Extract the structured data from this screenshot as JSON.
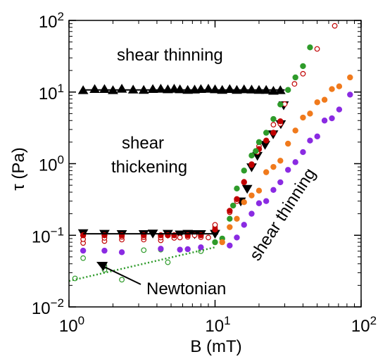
{
  "chart_data": {
    "type": "scatter",
    "xlabel": "B (mT)",
    "ylabel": "τ (Pa)",
    "xscale": "log",
    "yscale": "log",
    "xlim": [
      1,
      100
    ],
    "ylim": [
      0.01,
      100
    ],
    "x_ticks": [
      {
        "value": 1,
        "base": "10",
        "exp": "0"
      },
      {
        "value": 10,
        "base": "10",
        "exp": "1"
      },
      {
        "value": 100,
        "base": "10",
        "exp": "2"
      }
    ],
    "y_ticks": [
      {
        "value": 0.01,
        "base": "10",
        "exp": "−2"
      },
      {
        "value": 0.1,
        "base": "10",
        "exp": "−1"
      },
      {
        "value": 1,
        "base": "10",
        "exp": "0"
      },
      {
        "value": 10,
        "base": "10",
        "exp": "1"
      },
      {
        "value": 100,
        "base": "10",
        "exp": "2"
      }
    ],
    "grid": false,
    "annotations": {
      "shear_thinning_top": "shear thinning",
      "shear_thickening_line1": "shear",
      "shear_thickening_line2": "thickening",
      "shear_thinning_right": "shear thinning",
      "newtonian": "Newtonian"
    },
    "lines": [
      {
        "style": "solid",
        "color": "#000000",
        "x": [
          1.25,
          30
        ],
        "y": [
          10.7,
          10.7
        ]
      },
      {
        "style": "solid",
        "color": "#000000",
        "x": [
          1.25,
          10.5
        ],
        "y": [
          0.105,
          0.105
        ]
      },
      {
        "style": "dotted",
        "color": "#2e9b2a",
        "x": [
          1,
          10
        ],
        "y": [
          0.023,
          0.068
        ]
      }
    ],
    "series": [
      {
        "marker": "triangle-up",
        "color": "#000000",
        "filled": true,
        "x": [
          1.25,
          1.5,
          1.75,
          2.0,
          2.3,
          2.75,
          3.25,
          3.75,
          4.25,
          4.75,
          5.25,
          5.75,
          6.5,
          7.25,
          8.0,
          9.0,
          10.0,
          11.2,
          12.6,
          14.1,
          15.8,
          17.8,
          20.0,
          22.4,
          25.1,
          28.0
        ],
        "y": [
          10.5,
          10.9,
          10.9,
          10.5,
          11.0,
          10.7,
          10.6,
          10.9,
          11.0,
          10.8,
          11.0,
          10.8,
          10.6,
          10.7,
          10.9,
          11.0,
          10.8,
          10.6,
          10.9,
          10.6,
          10.8,
          10.7,
          10.6,
          10.6,
          10.3,
          10.5
        ]
      },
      {
        "marker": "triangle-down",
        "color": "#000000",
        "filled": true,
        "x": [
          1.25,
          1.75,
          2.3,
          3.25,
          3.75,
          4.75,
          5.75,
          6.5,
          7.25,
          8.0,
          10.0,
          15.0,
          16.6,
          17.8,
          19.5,
          22.0,
          25.0,
          28.2,
          29.5
        ],
        "y": [
          0.108,
          0.106,
          0.105,
          0.105,
          0.107,
          0.106,
          0.104,
          0.106,
          0.105,
          0.105,
          0.106,
          0.3,
          0.45,
          0.9,
          1.3,
          1.85,
          2.6,
          3.6,
          6.6
        ]
      },
      {
        "marker": "circle",
        "color": "#c00000",
        "filled": false,
        "x": [
          1.25,
          1.25,
          1.75,
          1.75,
          2.3,
          2.3,
          3.25,
          3.25,
          4.25,
          4.25,
          5.25,
          5.75,
          6.5,
          7.25,
          8.0,
          9.0,
          10.0,
          10.0,
          12.6,
          14.1,
          15.8,
          17.8,
          19.5,
          20.0,
          22.4,
          25.1,
          28.0,
          30.0,
          35.0,
          40.0,
          50.0,
          66.0
        ],
        "y": [
          0.078,
          0.088,
          0.083,
          0.092,
          0.087,
          0.095,
          0.087,
          0.094,
          0.085,
          0.093,
          0.092,
          0.093,
          0.095,
          0.1,
          0.094,
          0.093,
          0.13,
          0.14,
          0.21,
          0.3,
          0.56,
          0.95,
          1.45,
          1.75,
          2.7,
          3.5,
          3.6,
          6.8,
          13.0,
          18.0,
          40.0,
          84.0
        ]
      },
      {
        "marker": "circle",
        "color": "#c00000",
        "filled": true,
        "x": [
          1.25,
          1.75,
          2.3,
          3.25,
          4.25,
          4.75,
          5.25,
          6.5,
          8.0,
          10.0,
          12.6,
          14.1,
          15.8,
          17.8,
          20.0,
          22.4,
          25.1,
          28.0
        ],
        "y": [
          0.1,
          0.1,
          0.1,
          0.1,
          0.1,
          0.1,
          0.1,
          0.1,
          0.1,
          0.12,
          0.22,
          0.32,
          0.55,
          0.98,
          1.6,
          2.1,
          2.7,
          3.9
        ]
      },
      {
        "marker": "circle",
        "color": "#2e9b2a",
        "filled": true,
        "x": [
          10.0,
          11.2,
          12.6,
          13.3,
          14.1,
          15.8,
          17.8,
          19.0,
          20.0,
          22.4,
          25.1,
          28.0,
          31.6,
          35.5,
          40.0,
          44.7
        ],
        "y": [
          0.08,
          0.09,
          0.17,
          0.26,
          0.45,
          0.8,
          1.3,
          1.5,
          2.0,
          2.7,
          4.2,
          6.7,
          10.7,
          16.0,
          23.0,
          42.0
        ]
      },
      {
        "marker": "circle",
        "color": "#2e9b2a",
        "filled": false,
        "x": [
          1.1,
          1.25,
          1.75,
          1.75,
          2.3,
          3.25,
          4.25,
          4.75,
          5.75,
          8.0
        ],
        "y": [
          0.025,
          0.048,
          0.033,
          0.037,
          0.024,
          0.062,
          0.063,
          0.042,
          0.063,
          0.06
        ]
      },
      {
        "marker": "circle",
        "color": "#f07a1c",
        "filled": true,
        "x": [
          11.2,
          12.6,
          14.1,
          15.8,
          17.8,
          20.0,
          22.4,
          25.1,
          28.0,
          31.6,
          35.5,
          40.0,
          44.7,
          50.1,
          56.2,
          63.1,
          70.8,
          84.0
        ],
        "y": [
          0.08,
          0.13,
          0.17,
          0.29,
          0.36,
          0.42,
          0.76,
          0.9,
          1.1,
          1.9,
          2.9,
          4.4,
          5.0,
          7.2,
          7.8,
          11.0,
          12.0,
          16.0
        ]
      },
      {
        "marker": "circle",
        "color": "#8a2be2",
        "filled": true,
        "x": [
          1.25,
          1.75,
          2.3,
          4.25,
          5.75,
          6.5,
          8.0,
          12.6,
          14.1,
          15.8,
          17.8,
          20.0,
          22.4,
          25.1,
          28.0,
          31.6,
          35.5,
          40.0,
          44.7,
          50.1,
          56.2,
          63.1,
          70.8,
          84.0
        ],
        "y": [
          0.061,
          0.061,
          0.058,
          0.065,
          0.063,
          0.064,
          0.068,
          0.072,
          0.093,
          0.14,
          0.2,
          0.28,
          0.3,
          0.43,
          0.55,
          0.82,
          1.05,
          1.45,
          2.1,
          2.4,
          4.0,
          4.3,
          5.7,
          9.2
        ]
      }
    ]
  }
}
